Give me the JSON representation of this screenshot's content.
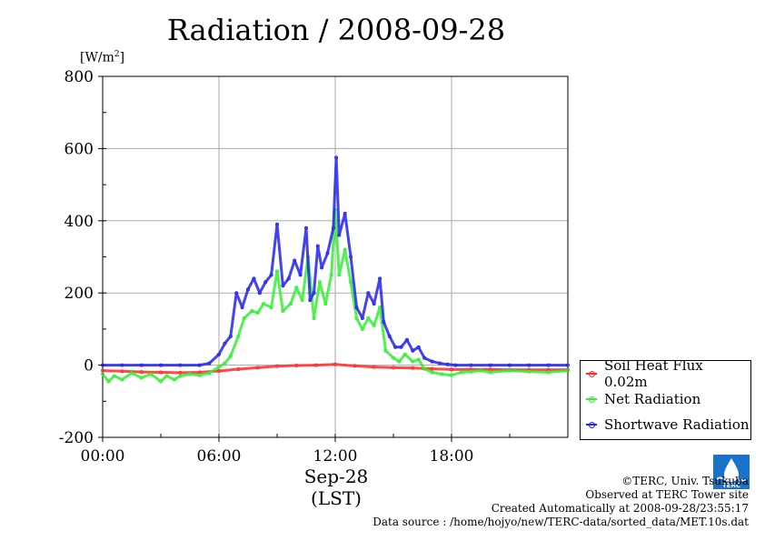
{
  "chart_data": {
    "type": "line",
    "title": "Radiation / 2008-09-28",
    "ylabel_prefix": "[W/m",
    "ylabel_sup": "2",
    "ylabel_suffix": "]",
    "xlabel_date": "Sep-28",
    "xlabel_tz": "(LST)",
    "ylim": [
      -200,
      800
    ],
    "yticks": [
      "800",
      "600",
      "400",
      "200",
      "0",
      "-200"
    ],
    "ytick_values": [
      800,
      600,
      400,
      200,
      0,
      -200
    ],
    "xlim": [
      0,
      24
    ],
    "xticks": [
      "00:00",
      "06:00",
      "12:00",
      "18:00"
    ],
    "xtick_values": [
      0,
      6,
      12,
      18
    ],
    "grid": true,
    "legend_placement": "right",
    "series": [
      {
        "name": "Soil Heat Flux 0.02m",
        "color": "#ff2a2a",
        "x": [
          0,
          1,
          2,
          3,
          4,
          5,
          6,
          7,
          8,
          9,
          10,
          11,
          12,
          13,
          14,
          15,
          16,
          17,
          18,
          19,
          20,
          21,
          22,
          23,
          24
        ],
        "y": [
          -15,
          -17,
          -19,
          -20,
          -21,
          -20,
          -16,
          -11,
          -7,
          -3,
          -1,
          0,
          2,
          -2,
          -5,
          -7,
          -8,
          -10,
          -12,
          -12,
          -12,
          -13,
          -13,
          -13,
          -13
        ]
      },
      {
        "name": "Net Radiation",
        "color": "#33ee33",
        "x": [
          0,
          0.3,
          0.6,
          1,
          1.5,
          2,
          2.5,
          3,
          3.3,
          3.7,
          4,
          4.5,
          5,
          5.5,
          6,
          6.3,
          6.6,
          7,
          7.3,
          7.7,
          8,
          8.3,
          8.7,
          9,
          9.3,
          9.7,
          10,
          10.3,
          10.6,
          10.9,
          11.2,
          11.5,
          11.8,
          12.0,
          12.2,
          12.5,
          12.8,
          13.1,
          13.4,
          13.7,
          14,
          14.3,
          14.6,
          15,
          15.3,
          15.6,
          16,
          16.3,
          16.6,
          17,
          17.5,
          18,
          18.5,
          19,
          19.5,
          20,
          21,
          22,
          23,
          24
        ],
        "y": [
          -25,
          -45,
          -30,
          -40,
          -22,
          -35,
          -25,
          -45,
          -30,
          -40,
          -30,
          -25,
          -28,
          -22,
          -5,
          5,
          25,
          80,
          130,
          150,
          145,
          170,
          160,
          260,
          150,
          170,
          215,
          180,
          300,
          130,
          230,
          170,
          250,
          430,
          250,
          320,
          230,
          130,
          100,
          130,
          110,
          160,
          40,
          20,
          10,
          30,
          10,
          15,
          -10,
          -20,
          -25,
          -28,
          -20,
          -18,
          -15,
          -20,
          -15,
          -18,
          -20,
          -15
        ]
      },
      {
        "name": "Shortwave Radiation",
        "color": "#2222ee",
        "x": [
          0,
          1,
          2,
          3,
          4,
          5,
          5.5,
          6,
          6.3,
          6.6,
          6.9,
          7.2,
          7.5,
          7.8,
          8.1,
          8.4,
          8.7,
          9,
          9.3,
          9.6,
          9.9,
          10.2,
          10.5,
          10.7,
          10.9,
          11.1,
          11.3,
          11.6,
          11.9,
          12.05,
          12.2,
          12.5,
          12.8,
          13.1,
          13.4,
          13.7,
          14,
          14.3,
          14.5,
          14.8,
          15.1,
          15.4,
          15.7,
          16,
          16.3,
          16.6,
          17,
          17.4,
          17.8,
          18.2,
          19,
          20,
          21,
          22,
          23,
          24
        ],
        "y": [
          0,
          0,
          0,
          0,
          0,
          0,
          5,
          30,
          60,
          80,
          200,
          160,
          210,
          240,
          200,
          230,
          250,
          390,
          220,
          240,
          290,
          250,
          380,
          180,
          200,
          330,
          270,
          310,
          380,
          575,
          360,
          420,
          300,
          160,
          130,
          200,
          170,
          240,
          120,
          80,
          50,
          50,
          70,
          40,
          50,
          20,
          10,
          5,
          2,
          0,
          0,
          0,
          0,
          0,
          0,
          0
        ]
      }
    ]
  },
  "footer": {
    "copyright": "©TERC, Univ. Tsukuba",
    "observed": "Observed at TERC Tower site",
    "created": "Created Automatically at 2008-09-28/23:55:17",
    "source": "Data source : /home/hojyo/new/TERC-data/sorted_data/MET.10s.dat"
  },
  "logo": {
    "text": "TERC",
    "color": "#1a73c8"
  }
}
